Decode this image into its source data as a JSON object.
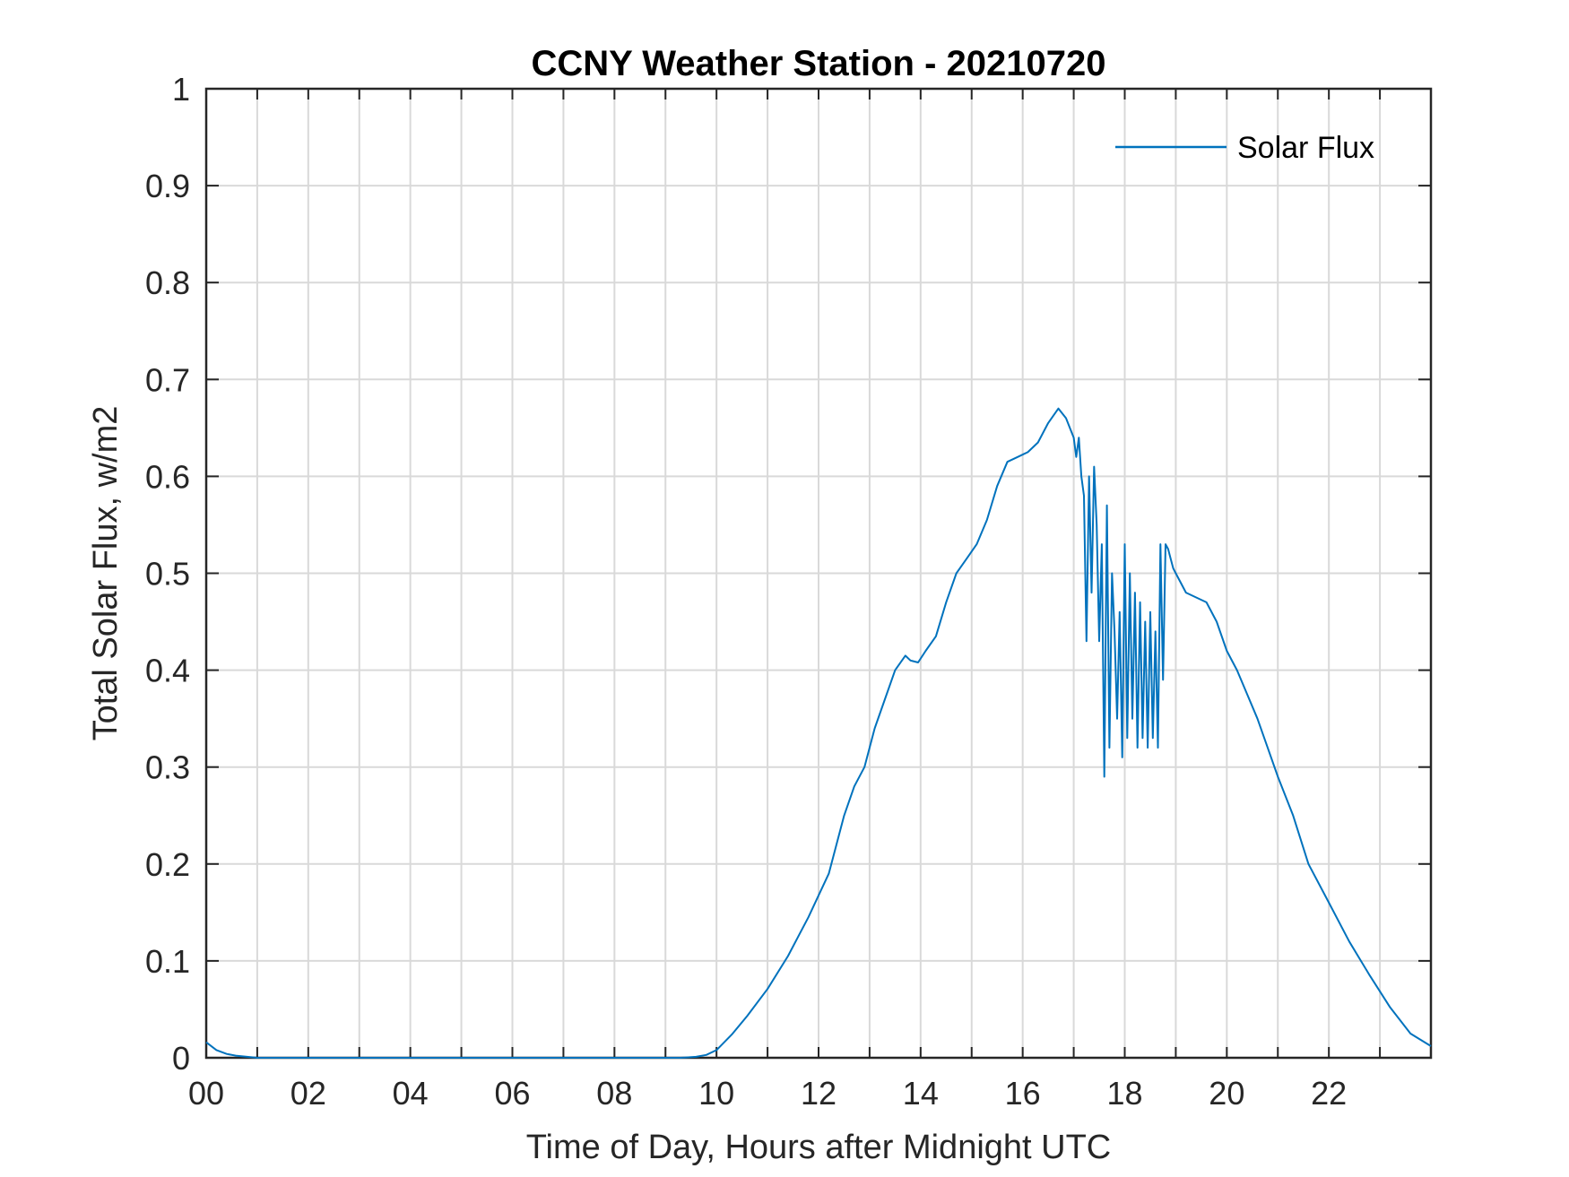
{
  "chart_data": {
    "type": "line",
    "title": "CCNY Weather Station - 20210720",
    "xlabel": "Time of Day, Hours after Midnight UTC",
    "ylabel": "Total Solar Flux, w/m2",
    "xlim": [
      0,
      24
    ],
    "ylim": [
      0,
      1
    ],
    "xticks": [
      0,
      2,
      4,
      6,
      8,
      10,
      12,
      14,
      16,
      18,
      20,
      22
    ],
    "xtick_labels": [
      "00",
      "02",
      "04",
      "06",
      "08",
      "10",
      "12",
      "14",
      "16",
      "18",
      "20",
      "22"
    ],
    "yticks": [
      0,
      0.1,
      0.2,
      0.3,
      0.4,
      0.5,
      0.6,
      0.7,
      0.8,
      0.9,
      1
    ],
    "ytick_labels": [
      "0",
      "0.1",
      "0.2",
      "0.3",
      "0.4",
      "0.5",
      "0.6",
      "0.7",
      "0.8",
      "0.9",
      "1"
    ],
    "grid": true,
    "legend": {
      "position": "top-right",
      "entries": [
        "Solar Flux"
      ]
    },
    "series": [
      {
        "name": "Solar Flux",
        "color": "#0072BD",
        "x": [
          0,
          0.2,
          0.4,
          0.6,
          0.8,
          1.0,
          9.3,
          9.6,
          9.8,
          10.0,
          10.3,
          10.6,
          11.0,
          11.4,
          11.8,
          12.2,
          12.5,
          12.7,
          12.9,
          13.1,
          13.3,
          13.5,
          13.7,
          13.8,
          13.95,
          14.1,
          14.3,
          14.5,
          14.7,
          14.9,
          15.1,
          15.3,
          15.5,
          15.7,
          15.9,
          16.1,
          16.3,
          16.5,
          16.7,
          16.85,
          17.0,
          17.05,
          17.1,
          17.15,
          17.2,
          17.25,
          17.3,
          17.35,
          17.4,
          17.45,
          17.5,
          17.55,
          17.6,
          17.65,
          17.7,
          17.75,
          17.8,
          17.85,
          17.9,
          17.95,
          18.0,
          18.05,
          18.1,
          18.15,
          18.2,
          18.25,
          18.3,
          18.35,
          18.4,
          18.45,
          18.5,
          18.55,
          18.6,
          18.65,
          18.7,
          18.75,
          18.8,
          18.85,
          18.9,
          18.95,
          19.0,
          19.2,
          19.4,
          19.6,
          19.8,
          20.0,
          20.2,
          20.4,
          20.6,
          20.8,
          21.0,
          21.3,
          21.6,
          22.0,
          22.4,
          22.8,
          23.2,
          23.6,
          24.0
        ],
        "values": [
          0.016,
          0.008,
          0.004,
          0.002,
          0.001,
          0.0,
          0.0,
          0.001,
          0.003,
          0.008,
          0.024,
          0.043,
          0.071,
          0.105,
          0.145,
          0.19,
          0.25,
          0.28,
          0.3,
          0.34,
          0.37,
          0.4,
          0.415,
          0.41,
          0.408,
          0.42,
          0.435,
          0.47,
          0.5,
          0.515,
          0.53,
          0.555,
          0.59,
          0.615,
          0.62,
          0.625,
          0.635,
          0.655,
          0.67,
          0.66,
          0.64,
          0.62,
          0.64,
          0.6,
          0.58,
          0.43,
          0.6,
          0.48,
          0.61,
          0.55,
          0.43,
          0.53,
          0.29,
          0.57,
          0.32,
          0.5,
          0.44,
          0.35,
          0.46,
          0.31,
          0.53,
          0.33,
          0.5,
          0.35,
          0.48,
          0.32,
          0.47,
          0.33,
          0.45,
          0.32,
          0.46,
          0.33,
          0.44,
          0.32,
          0.53,
          0.39,
          0.53,
          0.525,
          0.515,
          0.505,
          0.5,
          0.48,
          0.475,
          0.47,
          0.45,
          0.42,
          0.4,
          0.375,
          0.35,
          0.32,
          0.29,
          0.25,
          0.2,
          0.16,
          0.12,
          0.085,
          0.052,
          0.025,
          0.012
        ]
      }
    ]
  }
}
